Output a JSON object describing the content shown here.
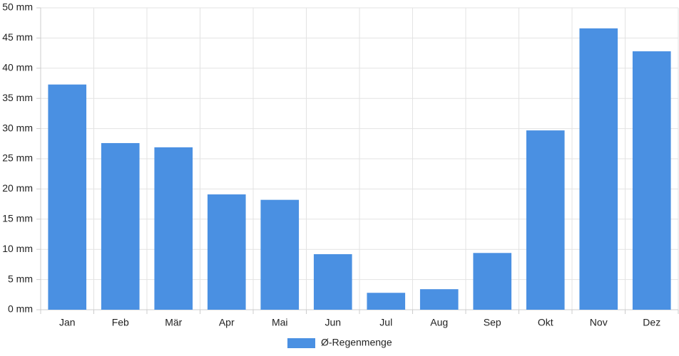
{
  "chart_data": {
    "type": "bar",
    "categories": [
      "Jan",
      "Feb",
      "Mär",
      "Apr",
      "Mai",
      "Jun",
      "Jul",
      "Aug",
      "Sep",
      "Okt",
      "Nov",
      "Dez"
    ],
    "series": [
      {
        "name": "Ø-Regenmenge",
        "color": "#4a90e2",
        "values": [
          37.3,
          27.6,
          26.9,
          19.1,
          18.2,
          9.2,
          2.8,
          3.4,
          9.4,
          29.7,
          46.6,
          42.8
        ]
      }
    ],
    "ylim": [
      0,
      50
    ],
    "yticks": [
      {
        "value": 0,
        "label": "0 mm"
      },
      {
        "value": 5,
        "label": "5 mm"
      },
      {
        "value": 10,
        "label": "10 mm"
      },
      {
        "value": 15,
        "label": "15 mm"
      },
      {
        "value": 20,
        "label": "20 mm"
      },
      {
        "value": 25,
        "label": "25 mm"
      },
      {
        "value": 30,
        "label": "30 mm"
      },
      {
        "value": 35,
        "label": "35 mm"
      },
      {
        "value": 40,
        "label": "40 mm"
      },
      {
        "value": 45,
        "label": "45 mm"
      },
      {
        "value": 50,
        "label": "50 mm"
      }
    ],
    "grid": true,
    "legend": "bottom"
  }
}
